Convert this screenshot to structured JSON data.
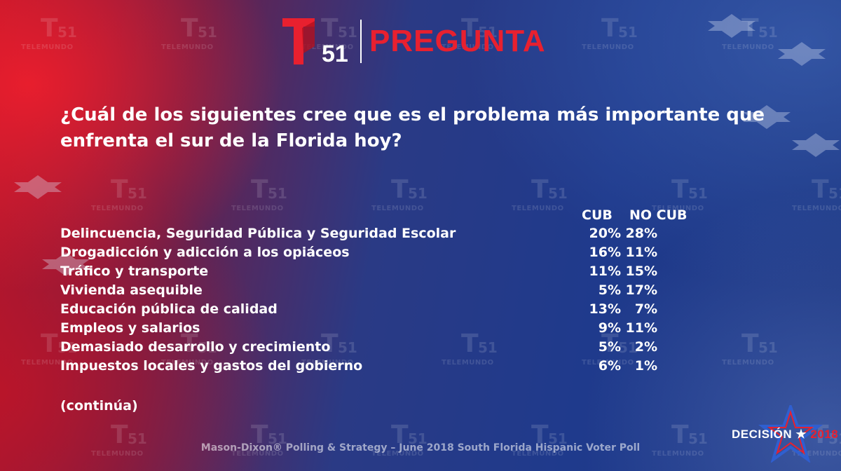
{
  "header": {
    "logo_number": "51",
    "title": "PREGUNTA"
  },
  "watermark": {
    "number": "51",
    "brand": "TELEMUNDO"
  },
  "question": "¿Cuál de los siguientes cree que es el problema más importante que enfrenta el sur de la Florida hoy?",
  "columns": {
    "cub": "CUB",
    "no_cub": "NO CUB"
  },
  "rows": [
    {
      "label": "Delincuencia, Seguridad Pública y Seguridad Escolar",
      "cub": "20%",
      "no_cub": "28%"
    },
    {
      "label": "Drogadicción y adicción a los opiáceos",
      "cub": "16%",
      "no_cub": "11%"
    },
    {
      "label": "Tráfico y transporte",
      "cub": "11%",
      "no_cub": "15%"
    },
    {
      "label": "Vivienda asequible",
      "cub": "5%",
      "no_cub": "17%"
    },
    {
      "label": "Educación pública de calidad",
      "cub": "13%",
      "no_cub": "7%"
    },
    {
      "label": "Empleos y salarios",
      "cub": "9%",
      "no_cub": "11%"
    },
    {
      "label": "Demasiado desarrollo y crecimiento",
      "cub": "5%",
      "no_cub": "2%"
    },
    {
      "label": "Impuestos locales y gastos del gobierno",
      "cub": "6%",
      "no_cub": "1%"
    }
  ],
  "note": "(continúa)",
  "source": "Mason-Dixon® Polling & Strategy – June 2018 South Florida Hispanic Voter Poll",
  "badge": {
    "word": "DECISIÓN",
    "year": "2018"
  },
  "colors": {
    "accent_red": "#e8202f",
    "text": "#ffffff",
    "bg_blue": "#1f3a8c",
    "bg_red": "#b3162b"
  }
}
